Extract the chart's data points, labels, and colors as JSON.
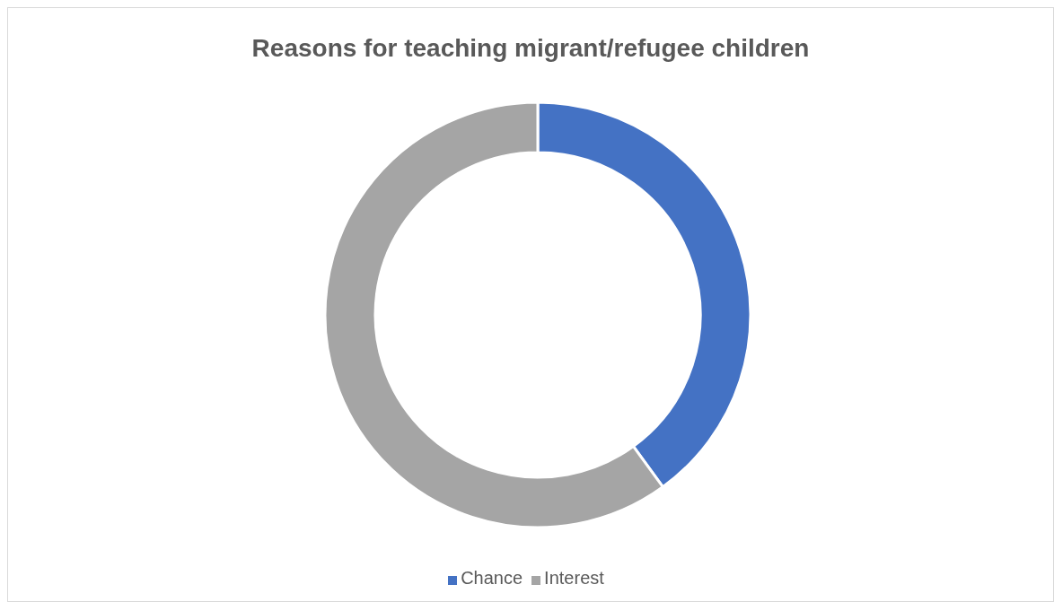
{
  "chart_data": {
    "type": "donut",
    "title": "Reasons for teaching migrant/refugee children",
    "categories": [
      "Chance",
      "Interest"
    ],
    "values": [
      40,
      60
    ],
    "colors": [
      "#4472c4",
      "#a5a5a5"
    ],
    "legend": "bottom"
  }
}
